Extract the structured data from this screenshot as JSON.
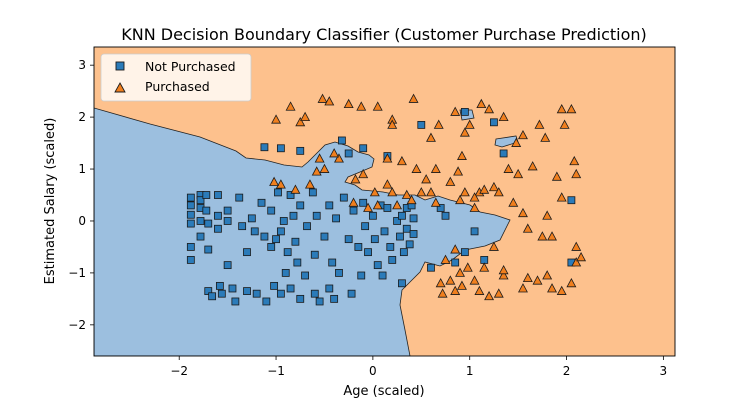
{
  "chart_data": {
    "type": "scatter",
    "title": "KNN Decision Boundary Classifier (Customer Purchase Prediction)",
    "xlabel": "Age (scaled)",
    "ylabel": "Estimated Salary (scaled)",
    "xlim": [
      -2.88,
      3.12
    ],
    "ylim": [
      -2.6,
      3.35
    ],
    "x_ticks": [
      -2,
      -1,
      0,
      1,
      2,
      3
    ],
    "y_ticks": [
      -2,
      -1,
      0,
      1,
      2,
      3
    ],
    "x_tick_labels": [
      "−2",
      "−1",
      "0",
      "1",
      "2",
      "3"
    ],
    "y_tick_labels": [
      "−2",
      "−1",
      "0",
      "1",
      "2",
      "3"
    ],
    "grid": false,
    "legend_position": "top-left",
    "colors": {
      "region_not_purchased": "#9cbfdf",
      "region_purchased": "#fdc18d",
      "marker_not_purchased": "#2b7bb9",
      "marker_purchased": "#f07f1e",
      "edge": "#1a1a1a"
    },
    "series": [
      {
        "name": "Not Purchased",
        "marker": "square",
        "points": [
          [
            -1.88,
            0.45
          ],
          [
            -1.88,
            0.3
          ],
          [
            -1.88,
            0.12
          ],
          [
            -1.88,
            -0.05
          ],
          [
            -1.88,
            -0.5
          ],
          [
            -1.88,
            -0.75
          ],
          [
            -1.78,
            0.5
          ],
          [
            -1.78,
            0.4
          ],
          [
            -1.78,
            0.25
          ],
          [
            -1.78,
            0.0
          ],
          [
            -1.78,
            -0.3
          ],
          [
            -1.72,
            0.5
          ],
          [
            -1.72,
            0.2
          ],
          [
            -1.7,
            -0.05
          ],
          [
            -1.7,
            -0.55
          ],
          [
            -1.7,
            -1.35
          ],
          [
            -1.66,
            -1.45
          ],
          [
            -1.6,
            0.5
          ],
          [
            -1.6,
            0.1
          ],
          [
            -1.6,
            -0.15
          ],
          [
            -1.58,
            -1.25
          ],
          [
            -1.56,
            -1.4
          ],
          [
            -1.5,
            0.2
          ],
          [
            -1.5,
            0.0
          ],
          [
            -1.5,
            -0.85
          ],
          [
            -1.45,
            -1.3
          ],
          [
            -1.42,
            -1.55
          ],
          [
            -1.38,
            0.45
          ],
          [
            -1.35,
            -0.1
          ],
          [
            -1.3,
            -1.35
          ],
          [
            -1.3,
            -0.6
          ],
          [
            -1.25,
            0.05
          ],
          [
            -1.22,
            -0.2
          ],
          [
            -1.2,
            -1.4
          ],
          [
            -1.15,
            0.35
          ],
          [
            -1.12,
            -0.3
          ],
          [
            -1.1,
            -1.55
          ],
          [
            -1.05,
            -0.5
          ],
          [
            -1.05,
            0.2
          ],
          [
            -1.02,
            -1.25
          ],
          [
            -1.0,
            -0.35
          ],
          [
            -0.98,
            0.55
          ],
          [
            -0.95,
            -1.4
          ],
          [
            -0.95,
            -0.2
          ],
          [
            -0.92,
            0.0
          ],
          [
            -0.9,
            -1.0
          ],
          [
            -0.88,
            -0.6
          ],
          [
            -0.85,
            0.5
          ],
          [
            -0.85,
            -1.3
          ],
          [
            -0.82,
            0.1
          ],
          [
            -0.8,
            -0.4
          ],
          [
            -0.78,
            -0.8
          ],
          [
            -0.75,
            0.3
          ],
          [
            -0.75,
            -1.5
          ],
          [
            -0.7,
            -1.05
          ],
          [
            -0.68,
            -0.1
          ],
          [
            -0.62,
            0.55
          ],
          [
            -0.6,
            -1.4
          ],
          [
            -0.6,
            -0.65
          ],
          [
            -0.58,
            0.1
          ],
          [
            -0.55,
            -1.55
          ],
          [
            -0.5,
            -0.3
          ],
          [
            -0.45,
            0.3
          ],
          [
            -0.45,
            -1.3
          ],
          [
            -0.42,
            -0.8
          ],
          [
            -0.4,
            -1.5
          ],
          [
            -0.38,
            0.05
          ],
          [
            -0.35,
            -1.0
          ],
          [
            -0.3,
            0.45
          ],
          [
            -0.25,
            -0.35
          ],
          [
            -0.22,
            -1.4
          ],
          [
            -0.2,
            0.2
          ],
          [
            -0.15,
            -0.5
          ],
          [
            -0.12,
            -1.05
          ],
          [
            -0.1,
            0.35
          ],
          [
            -0.08,
            -0.1
          ],
          [
            -0.05,
            -0.6
          ],
          [
            0.0,
            0.1
          ],
          [
            0.02,
            -0.35
          ],
          [
            0.05,
            -0.85
          ],
          [
            0.08,
            0.3
          ],
          [
            0.1,
            -1.05
          ],
          [
            0.12,
            -0.2
          ],
          [
            0.15,
            0.25
          ],
          [
            0.18,
            -0.5
          ],
          [
            0.2,
            -0.75
          ],
          [
            0.25,
            0.0
          ],
          [
            0.28,
            -0.3
          ],
          [
            0.3,
            0.1
          ],
          [
            0.32,
            -0.6
          ],
          [
            0.35,
            0.25
          ],
          [
            0.35,
            -0.15
          ],
          [
            0.38,
            -0.45
          ],
          [
            0.42,
            0.05
          ],
          [
            0.42,
            -0.25
          ],
          [
            0.4,
            0.3
          ],
          [
            -0.25,
            1.3
          ],
          [
            -0.1,
            1.4
          ],
          [
            0.15,
            1.25
          ],
          [
            -0.75,
            1.35
          ],
          [
            -0.95,
            1.4
          ],
          [
            -1.12,
            1.42
          ],
          [
            -0.32,
            1.55
          ],
          [
            0.5,
            1.85
          ],
          [
            0.95,
            2.1
          ],
          [
            1.25,
            1.9
          ],
          [
            1.35,
            1.3
          ],
          [
            0.7,
            0.25
          ],
          [
            0.75,
            0.1
          ],
          [
            0.95,
            -0.6
          ],
          [
            0.85,
            -0.8
          ],
          [
            1.05,
            -0.2
          ],
          [
            1.15,
            -0.75
          ],
          [
            0.6,
            -0.9
          ],
          [
            0.3,
            -1.2
          ],
          [
            2.05,
            0.4
          ],
          [
            2.05,
            -0.8
          ]
        ]
      },
      {
        "name": "Purchased",
        "marker": "triangle",
        "points": [
          [
            -0.85,
            2.2
          ],
          [
            -1.0,
            1.95
          ],
          [
            -0.75,
            1.9
          ],
          [
            -0.7,
            2.0
          ],
          [
            -0.52,
            2.35
          ],
          [
            -0.45,
            2.3
          ],
          [
            -0.25,
            2.25
          ],
          [
            -0.12,
            2.2
          ],
          [
            0.05,
            2.2
          ],
          [
            0.2,
            1.95
          ],
          [
            0.2,
            1.85
          ],
          [
            0.42,
            2.35
          ],
          [
            0.6,
            1.6
          ],
          [
            0.68,
            1.85
          ],
          [
            0.85,
            2.1
          ],
          [
            0.95,
            1.7
          ],
          [
            1.0,
            1.85
          ],
          [
            1.12,
            2.25
          ],
          [
            1.2,
            2.15
          ],
          [
            1.35,
            2.0
          ],
          [
            1.48,
            1.5
          ],
          [
            1.55,
            1.65
          ],
          [
            1.72,
            1.85
          ],
          [
            1.78,
            1.6
          ],
          [
            1.95,
            2.15
          ],
          [
            2.05,
            2.15
          ],
          [
            1.98,
            1.85
          ],
          [
            2.08,
            1.15
          ],
          [
            2.1,
            0.9
          ],
          [
            1.9,
            0.85
          ],
          [
            1.65,
            1.05
          ],
          [
            1.4,
            1.0
          ],
          [
            1.5,
            0.9
          ],
          [
            1.25,
            0.65
          ],
          [
            1.1,
            0.55
          ],
          [
            1.05,
            0.45
          ],
          [
            0.92,
            1.25
          ],
          [
            0.88,
            0.95
          ],
          [
            0.8,
            0.75
          ],
          [
            0.65,
            1.0
          ],
          [
            0.55,
            0.8
          ],
          [
            0.45,
            1.0
          ],
          [
            0.3,
            1.15
          ],
          [
            0.15,
            0.7
          ],
          [
            0.02,
            0.55
          ],
          [
            -0.1,
            0.9
          ],
          [
            -0.18,
            0.8
          ],
          [
            -0.35,
            1.2
          ],
          [
            -0.5,
            1.0
          ],
          [
            -0.58,
            0.95
          ],
          [
            -0.65,
            0.7
          ],
          [
            -0.8,
            0.6
          ],
          [
            -0.95,
            0.7
          ],
          [
            -1.02,
            0.75
          ],
          [
            0.35,
            0.5
          ],
          [
            0.2,
            0.55
          ],
          [
            0.5,
            0.55
          ],
          [
            0.65,
            0.35
          ],
          [
            0.9,
            0.4
          ],
          [
            1.05,
            0.25
          ],
          [
            1.15,
            0.6
          ],
          [
            1.3,
            0.55
          ],
          [
            1.45,
            0.35
          ],
          [
            1.55,
            0.15
          ],
          [
            1.6,
            -0.15
          ],
          [
            1.75,
            -0.3
          ],
          [
            1.85,
            -0.3
          ],
          [
            1.8,
            0.1
          ],
          [
            1.95,
            0.45
          ],
          [
            2.1,
            -0.5
          ],
          [
            2.1,
            -0.8
          ],
          [
            2.05,
            -1.2
          ],
          [
            1.95,
            -1.35
          ],
          [
            1.85,
            -1.3
          ],
          [
            1.8,
            -1.05
          ],
          [
            1.6,
            -1.1
          ],
          [
            1.55,
            -1.3
          ],
          [
            1.35,
            -1.05
          ],
          [
            1.3,
            -1.4
          ],
          [
            1.2,
            -1.45
          ],
          [
            1.1,
            -1.35
          ],
          [
            1.05,
            -1.15
          ],
          [
            0.98,
            -0.9
          ],
          [
            0.92,
            -1.25
          ],
          [
            0.9,
            -1.0
          ],
          [
            0.85,
            -1.35
          ],
          [
            0.8,
            -1.15
          ],
          [
            0.72,
            -1.4
          ],
          [
            0.7,
            -1.2
          ],
          [
            0.85,
            -0.55
          ],
          [
            0.75,
            -0.75
          ],
          [
            1.15,
            -0.9
          ],
          [
            1.25,
            -0.5
          ],
          [
            1.35,
            -0.95
          ],
          [
            0.4,
            0.4
          ],
          [
            0.25,
            0.3
          ],
          [
            0.05,
            0.3
          ],
          [
            -0.05,
            0.25
          ],
          [
            -0.2,
            0.35
          ],
          [
            0.6,
            0.55
          ],
          [
            0.15,
            1.2
          ],
          [
            -0.55,
            1.2
          ],
          [
            -0.4,
            1.3
          ],
          [
            0.95,
            0.55
          ],
          [
            1.7,
            -1.15
          ],
          [
            2.15,
            -0.7
          ]
        ]
      }
    ]
  }
}
